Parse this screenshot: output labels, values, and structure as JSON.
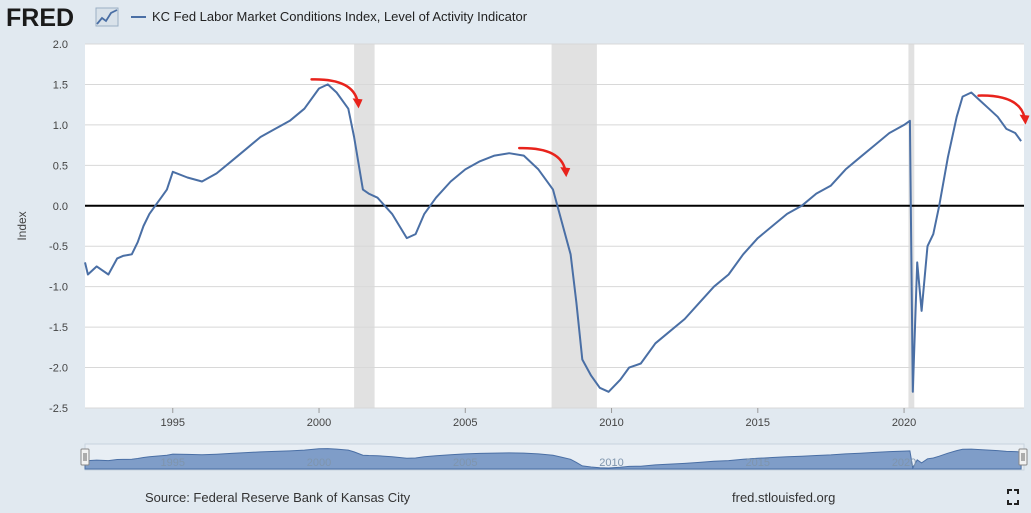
{
  "brand": {
    "logo_text": "FRED"
  },
  "footer": {
    "source": "Source: Federal Reserve Bank of Kansas City",
    "site": "fred.stlouisfed.org"
  },
  "navigator": {
    "tick_labels": [
      "1995",
      "2000",
      "2005",
      "2010",
      "2015",
      "2020"
    ]
  },
  "colors": {
    "line": "#4a6fa5",
    "annotation": "#e8231c",
    "recession": "#e1e1e1",
    "background": "#e1e9f0"
  },
  "icons": {
    "fullscreen": "expand-corners-icon"
  },
  "chart_data": {
    "type": "line",
    "title": "KC Fed Labor Market Conditions Index, Level of Activity Indicator",
    "xlabel": "",
    "ylabel": "Index",
    "xlim": [
      1992.0,
      2024.1
    ],
    "ylim": [
      -2.5,
      2.0
    ],
    "x_ticks": [
      "1995",
      "2000",
      "2005",
      "2010",
      "2015",
      "2020"
    ],
    "y_ticks": [
      "2.0",
      "1.5",
      "1.0",
      "0.5",
      "0.0",
      "-0.5",
      "-1.0",
      "-1.5",
      "-2.0",
      "-2.5"
    ],
    "reference_line": 0.0,
    "recessions": [
      [
        2001.2,
        2001.9
      ],
      [
        2007.95,
        2009.5
      ],
      [
        2020.15,
        2020.35
      ]
    ],
    "series": [
      {
        "name": "KC Fed Labor Market Conditions Index, Level of Activity Indicator",
        "x": [
          1992.0,
          1992.1,
          1992.4,
          1992.8,
          1993.1,
          1993.3,
          1993.6,
          1993.8,
          1994.0,
          1994.2,
          1994.4,
          1994.6,
          1994.8,
          1995.0,
          1995.5,
          1996.0,
          1996.5,
          1997.0,
          1997.5,
          1998.0,
          1998.5,
          1999.0,
          1999.5,
          2000.0,
          2000.3,
          2000.6,
          2001.0,
          2001.2,
          2001.5,
          2001.7,
          2002.0,
          2002.5,
          2003.0,
          2003.3,
          2003.6,
          2004.0,
          2004.5,
          2005.0,
          2005.5,
          2006.0,
          2006.5,
          2007.0,
          2007.5,
          2008.0,
          2008.3,
          2008.6,
          2008.8,
          2009.0,
          2009.3,
          2009.6,
          2009.9,
          2010.3,
          2010.6,
          2011.0,
          2011.5,
          2012.0,
          2012.5,
          2013.0,
          2013.5,
          2014.0,
          2014.5,
          2015.0,
          2015.5,
          2016.0,
          2016.5,
          2017.0,
          2017.5,
          2018.0,
          2018.5,
          2019.0,
          2019.5,
          2020.0,
          2020.2,
          2020.3,
          2020.45,
          2020.6,
          2020.8,
          2021.0,
          2021.2,
          2021.5,
          2021.8,
          2022.0,
          2022.3,
          2022.6,
          2022.9,
          2023.2,
          2023.5,
          2023.8,
          2024.0
        ],
        "y": [
          -0.7,
          -0.85,
          -0.75,
          -0.85,
          -0.65,
          -0.62,
          -0.6,
          -0.45,
          -0.25,
          -0.1,
          0.0,
          0.1,
          0.2,
          0.42,
          0.35,
          0.3,
          0.4,
          0.55,
          0.7,
          0.85,
          0.95,
          1.05,
          1.2,
          1.45,
          1.5,
          1.4,
          1.2,
          0.85,
          0.2,
          0.15,
          0.1,
          -0.1,
          -0.4,
          -0.35,
          -0.1,
          0.1,
          0.3,
          0.45,
          0.55,
          0.62,
          0.65,
          0.62,
          0.45,
          0.2,
          -0.2,
          -0.6,
          -1.2,
          -1.9,
          -2.1,
          -2.25,
          -2.3,
          -2.15,
          -2.0,
          -1.95,
          -1.7,
          -1.55,
          -1.4,
          -1.2,
          -1.0,
          -0.85,
          -0.6,
          -0.4,
          -0.25,
          -0.1,
          0.0,
          0.15,
          0.25,
          0.45,
          0.6,
          0.75,
          0.9,
          1.0,
          1.05,
          -2.3,
          -0.7,
          -1.3,
          -0.5,
          -0.35,
          0.0,
          0.6,
          1.1,
          1.35,
          1.4,
          1.3,
          1.2,
          1.1,
          0.95,
          0.9,
          0.8
        ]
      }
    ],
    "annotations": [
      {
        "type": "arrow",
        "at_x": 2000.6,
        "at_y": 1.55,
        "color": "#e8231c"
      },
      {
        "type": "arrow",
        "at_x": 2007.7,
        "at_y": 0.7,
        "color": "#e8231c"
      },
      {
        "type": "arrow",
        "at_x": 2023.4,
        "at_y": 1.35,
        "color": "#e8231c"
      }
    ]
  }
}
